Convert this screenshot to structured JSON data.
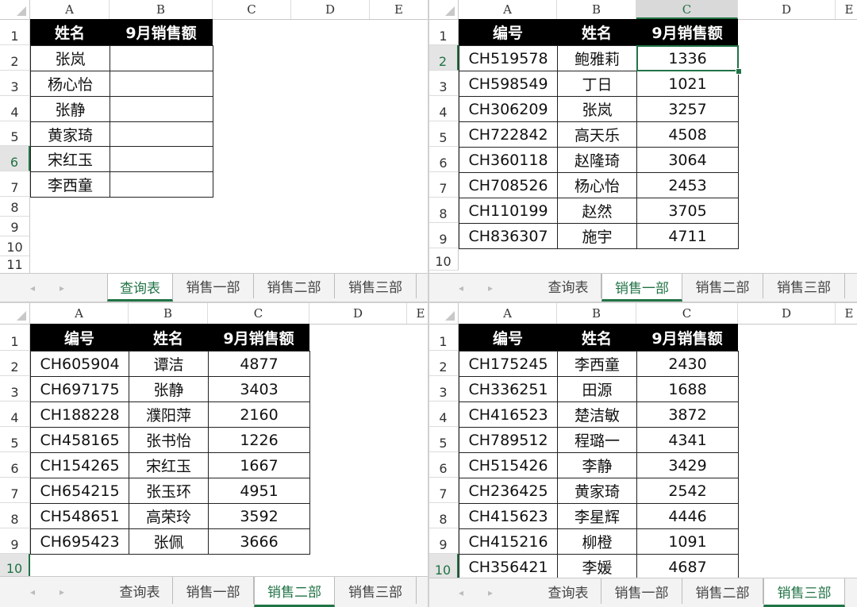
{
  "columns": [
    "A",
    "B",
    "C",
    "D",
    "E"
  ],
  "sheet_tabs": [
    "查询表",
    "销售一部",
    "销售二部",
    "销售三部"
  ],
  "icons": {
    "scroll_left": "chevron-left-icon",
    "scroll_right": "chevron-right-icon"
  },
  "accent_color": "#217346",
  "panels": [
    {
      "active_tab": 0,
      "row_numbers": [
        "1",
        "2",
        "3",
        "4",
        "5",
        "6",
        "7",
        "8",
        "9",
        "10",
        "11"
      ],
      "selected_row": 6,
      "selected_col": null,
      "table": {
        "headers": [
          "姓名",
          "9月销售额"
        ],
        "rows": [
          [
            "张岚",
            ""
          ],
          [
            "杨心怡",
            ""
          ],
          [
            "张静",
            ""
          ],
          [
            "黄家琦",
            ""
          ],
          [
            "宋红玉",
            ""
          ],
          [
            "李西童",
            ""
          ]
        ]
      }
    },
    {
      "active_tab": 1,
      "row_numbers": [
        "1",
        "2",
        "3",
        "4",
        "5",
        "6",
        "7",
        "8",
        "9",
        "10"
      ],
      "selected_row": 2,
      "selected_col": "C",
      "table": {
        "headers": [
          "编号",
          "姓名",
          "9月销售额"
        ],
        "rows": [
          [
            "CH519578",
            "鲍雅莉",
            "1336"
          ],
          [
            "CH598549",
            "丁日",
            "1021"
          ],
          [
            "CH306209",
            "张岚",
            "3257"
          ],
          [
            "CH722842",
            "高天乐",
            "4508"
          ],
          [
            "CH360118",
            "赵隆琦",
            "3064"
          ],
          [
            "CH708526",
            "杨心怡",
            "2453"
          ],
          [
            "CH110199",
            "赵然",
            "3705"
          ],
          [
            "CH836307",
            "施宇",
            "4711"
          ]
        ]
      }
    },
    {
      "active_tab": 2,
      "row_numbers": [
        "1",
        "2",
        "3",
        "4",
        "5",
        "6",
        "7",
        "8",
        "9",
        "10"
      ],
      "selected_row": 10,
      "selected_col": null,
      "table": {
        "headers": [
          "编号",
          "姓名",
          "9月销售额"
        ],
        "rows": [
          [
            "CH605904",
            "谭洁",
            "4877"
          ],
          [
            "CH697175",
            "张静",
            "3403"
          ],
          [
            "CH188228",
            "濮阳萍",
            "2160"
          ],
          [
            "CH458165",
            "张书怡",
            "1226"
          ],
          [
            "CH154265",
            "宋红玉",
            "1667"
          ],
          [
            "CH654215",
            "张玉环",
            "4951"
          ],
          [
            "CH548651",
            "高荣玲",
            "3592"
          ],
          [
            "CH695423",
            "张佩",
            "3666"
          ]
        ]
      }
    },
    {
      "active_tab": 3,
      "row_numbers": [
        "1",
        "2",
        "3",
        "4",
        "5",
        "6",
        "7",
        "8",
        "9",
        "10"
      ],
      "selected_row": 10,
      "selected_col": null,
      "table": {
        "headers": [
          "编号",
          "姓名",
          "9月销售额"
        ],
        "rows": [
          [
            "CH175245",
            "李西童",
            "2430"
          ],
          [
            "CH336251",
            "田源",
            "1688"
          ],
          [
            "CH416523",
            "楚洁敏",
            "3872"
          ],
          [
            "CH789512",
            "程璐一",
            "4341"
          ],
          [
            "CH515426",
            "李静",
            "3429"
          ],
          [
            "CH236425",
            "黄家琦",
            "2542"
          ],
          [
            "CH415623",
            "李星辉",
            "4446"
          ],
          [
            "CH415216",
            "柳橙",
            "1091"
          ],
          [
            "CH356421",
            "李媛",
            "4687"
          ]
        ]
      }
    }
  ]
}
